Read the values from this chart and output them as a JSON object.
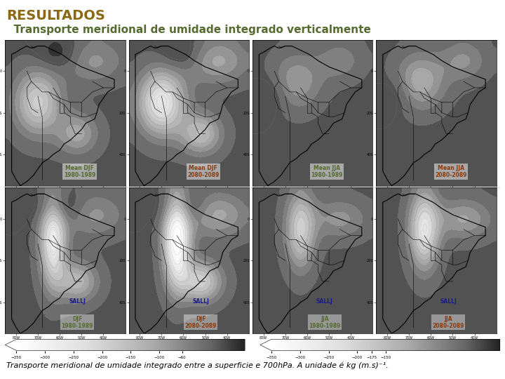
{
  "title": "RESULTADOS",
  "title_color": "#8B6914",
  "title_fontsize": 14,
  "subtitle": "  Transporte meridional de umidade integrado verticalmente",
  "subtitle_color": "#556B2F",
  "subtitle_fontsize": 11,
  "caption": "Transporte meridional de umidade integrado entre a superficie e 700hPa. A unidade é kg (m.s)⁻¹.",
  "caption_fontsize": 8,
  "background_color": "#ffffff",
  "panel_labels": [
    {
      "text": "Mean DJF\n1980-1989",
      "color": "#556B2F"
    },
    {
      "text": "Mean DJF\n2080-2089",
      "color": "#8B3A0F"
    },
    {
      "text": "Mean JJA\n1980-1989",
      "color": "#556B2F"
    },
    {
      "text": "Mean JJA\n2080-2089",
      "color": "#8B3A0F"
    },
    {
      "text": "SALLJ\nDJF\n1980-1989",
      "color_sallj": "#1a1a8c",
      "color_rest": "#556B2F"
    },
    {
      "text": "SALLJ\nDJF\n2080-2089",
      "color_sallj": "#1a1a8c",
      "color_rest": "#8B3A0F"
    },
    {
      "text": "SALLJ\nJJA\n1980-1989",
      "color_sallj": "#1a1a8c",
      "color_rest": "#556B2F"
    },
    {
      "text": "SALLJ\nJJA\n2080-2089",
      "color_sallj": "#1a1a8c",
      "color_rest": "#8B3A0F"
    }
  ],
  "colorbar_levels1": [
    -350,
    -300,
    -250,
    -200,
    -150,
    -100,
    -60
  ],
  "colorbar_levels2": [
    -350,
    -300,
    -250,
    -200,
    -175,
    -150
  ],
  "figwidth": 7.2,
  "figheight": 5.4
}
